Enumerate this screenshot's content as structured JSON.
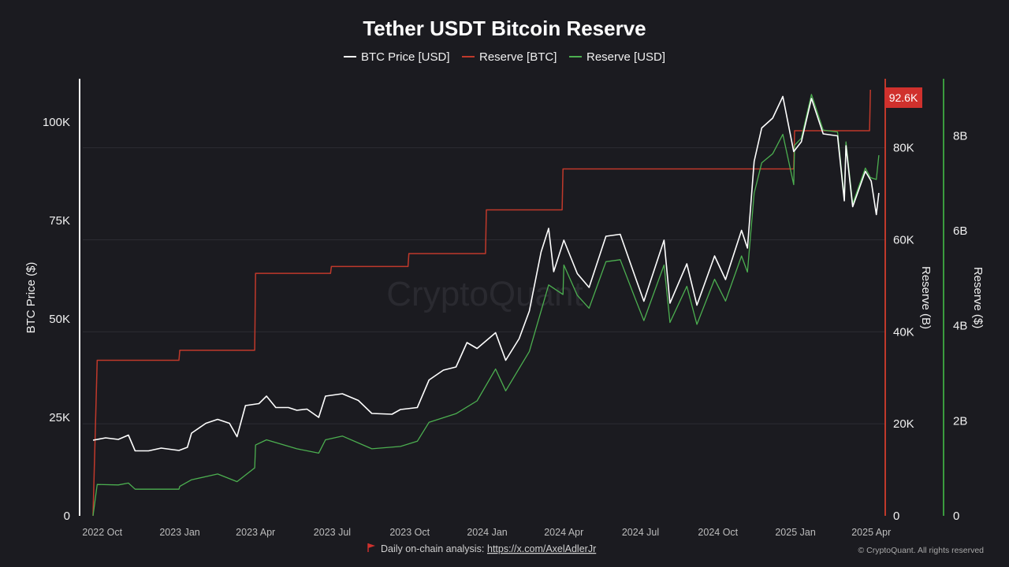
{
  "chart_data": {
    "type": "line",
    "title": "Tether USDT Bitcoin Reserve",
    "legend": {
      "placement": "top-center",
      "entries": [
        {
          "label": "BTC Price [USD]",
          "color": "#ffffff"
        },
        {
          "label": "Reserve [BTC]",
          "color": "#c0392b"
        },
        {
          "label": "Reserve [USD]",
          "color": "#4caf50"
        }
      ]
    },
    "x_axis": {
      "type": "date",
      "range": [
        "2022-09-20",
        "2025-04-12"
      ],
      "ticks": [
        {
          "date": "2022-10-01",
          "label": "2022 Oct"
        },
        {
          "date": "2023-01-01",
          "label": "2023 Jan"
        },
        {
          "date": "2023-04-01",
          "label": "2023 Apr"
        },
        {
          "date": "2023-07-01",
          "label": "2023 Jul"
        },
        {
          "date": "2023-10-01",
          "label": "2023 Oct"
        },
        {
          "date": "2024-01-01",
          "label": "2024 Jan"
        },
        {
          "date": "2024-04-01",
          "label": "2024 Apr"
        },
        {
          "date": "2024-07-01",
          "label": "2024 Jul"
        },
        {
          "date": "2024-10-01",
          "label": "2024 Oct"
        },
        {
          "date": "2025-01-01",
          "label": "2025 Jan"
        },
        {
          "date": "2025-04-01",
          "label": "2025 Apr"
        }
      ]
    },
    "y_axes": {
      "left": {
        "label": "BTC Price ($)",
        "range": [
          0,
          111000
        ],
        "ticks": [
          0,
          25000,
          50000,
          75000,
          100000
        ],
        "tick_labels": [
          "0",
          "25K",
          "50K",
          "75K",
          "100K"
        ]
      },
      "right_btc": {
        "label": "Reserve (B)",
        "range": [
          0,
          95000
        ],
        "ticks": [
          0,
          20000,
          40000,
          60000,
          80000
        ],
        "tick_labels": [
          "0",
          "20K",
          "40K",
          "60K",
          "80K"
        ],
        "color": "#c0392b"
      },
      "right_usd": {
        "label": "Reserve ($)",
        "range": [
          0,
          9200000000
        ],
        "ticks": [
          0,
          2000000000,
          4000000000,
          6000000000,
          8000000000
        ],
        "tick_labels": [
          "0",
          "2B",
          "4B",
          "6B",
          "8B"
        ],
        "color": "#4caf50"
      }
    },
    "grid": true,
    "watermark": "CryptoQuant",
    "last_value_badge": "92.6K",
    "series": [
      {
        "name": "BTC Price [USD]",
        "color": "#ffffff",
        "axis": "left",
        "points": [
          [
            "2022-09-20",
            19200
          ],
          [
            "2022-10-05",
            19800
          ],
          [
            "2022-10-20",
            19400
          ],
          [
            "2022-11-01",
            20500
          ],
          [
            "2022-11-09",
            16500
          ],
          [
            "2022-11-25",
            16500
          ],
          [
            "2022-12-10",
            17200
          ],
          [
            "2022-12-31",
            16600
          ],
          [
            "2023-01-10",
            17400
          ],
          [
            "2023-01-15",
            21000
          ],
          [
            "2023-02-01",
            23500
          ],
          [
            "2023-02-15",
            24500
          ],
          [
            "2023-03-01",
            23500
          ],
          [
            "2023-03-10",
            20100
          ],
          [
            "2023-03-20",
            28000
          ],
          [
            "2023-04-05",
            28500
          ],
          [
            "2023-04-14",
            30400
          ],
          [
            "2023-04-25",
            27500
          ],
          [
            "2023-05-10",
            27500
          ],
          [
            "2023-05-20",
            26800
          ],
          [
            "2023-06-01",
            27100
          ],
          [
            "2023-06-15",
            25000
          ],
          [
            "2023-06-23",
            30400
          ],
          [
            "2023-07-13",
            31000
          ],
          [
            "2023-08-01",
            29300
          ],
          [
            "2023-08-17",
            26000
          ],
          [
            "2023-09-10",
            25800
          ],
          [
            "2023-09-20",
            27000
          ],
          [
            "2023-10-10",
            27500
          ],
          [
            "2023-10-24",
            34500
          ],
          [
            "2023-11-10",
            37000
          ],
          [
            "2023-11-25",
            37800
          ],
          [
            "2023-12-08",
            44000
          ],
          [
            "2023-12-20",
            42500
          ],
          [
            "2024-01-11",
            46500
          ],
          [
            "2024-01-23",
            39500
          ],
          [
            "2024-02-08",
            45000
          ],
          [
            "2024-02-20",
            52000
          ],
          [
            "2024-03-05",
            67000
          ],
          [
            "2024-03-14",
            73000
          ],
          [
            "2024-03-20",
            62000
          ],
          [
            "2024-04-01",
            70000
          ],
          [
            "2024-04-17",
            61500
          ],
          [
            "2024-05-01",
            58000
          ],
          [
            "2024-05-21",
            71000
          ],
          [
            "2024-06-07",
            71500
          ],
          [
            "2024-06-25",
            60500
          ],
          [
            "2024-07-05",
            54500
          ],
          [
            "2024-07-29",
            70000
          ],
          [
            "2024-08-05",
            54000
          ],
          [
            "2024-08-25",
            64000
          ],
          [
            "2024-09-06",
            53500
          ],
          [
            "2024-09-27",
            66000
          ],
          [
            "2024-10-10",
            60000
          ],
          [
            "2024-10-29",
            72500
          ],
          [
            "2024-11-05",
            68000
          ],
          [
            "2024-11-13",
            90000
          ],
          [
            "2024-11-22",
            98500
          ],
          [
            "2024-12-05",
            101000
          ],
          [
            "2024-12-17",
            106500
          ],
          [
            "2024-12-30",
            92500
          ],
          [
            "2025-01-08",
            95000
          ],
          [
            "2025-01-20",
            106000
          ],
          [
            "2025-02-03",
            97000
          ],
          [
            "2025-02-20",
            96500
          ],
          [
            "2025-02-28",
            80000
          ],
          [
            "2025-03-02",
            94000
          ],
          [
            "2025-03-10",
            78500
          ],
          [
            "2025-03-25",
            87500
          ],
          [
            "2025-04-01",
            85000
          ],
          [
            "2025-04-07",
            76500
          ],
          [
            "2025-04-10",
            82000
          ]
        ]
      },
      {
        "name": "Reserve [BTC]",
        "color": "#c0392b",
        "axis": "right_btc",
        "points": [
          [
            "2022-09-20",
            0
          ],
          [
            "2022-09-25",
            33800
          ],
          [
            "2022-12-31",
            33800
          ],
          [
            "2023-01-01",
            36000
          ],
          [
            "2023-03-31",
            36000
          ],
          [
            "2023-04-01",
            52700
          ],
          [
            "2023-06-29",
            52700
          ],
          [
            "2023-06-30",
            54200
          ],
          [
            "2023-09-29",
            54200
          ],
          [
            "2023-09-30",
            57000
          ],
          [
            "2023-12-30",
            57000
          ],
          [
            "2023-12-31",
            66500
          ],
          [
            "2024-03-30",
            66500
          ],
          [
            "2024-03-31",
            75400
          ],
          [
            "2024-12-30",
            75400
          ],
          [
            "2024-12-31",
            83700
          ],
          [
            "2025-03-30",
            83700
          ],
          [
            "2025-03-31",
            92600
          ]
        ]
      },
      {
        "name": "Reserve [USD]",
        "color": "#4caf50",
        "axis": "right_usd",
        "points": [
          [
            "2022-09-20",
            0
          ],
          [
            "2022-09-25",
            660000000
          ],
          [
            "2022-10-20",
            650000000
          ],
          [
            "2022-11-01",
            690000000
          ],
          [
            "2022-11-09",
            560000000
          ],
          [
            "2022-12-31",
            560000000
          ],
          [
            "2023-01-01",
            620000000
          ],
          [
            "2023-01-15",
            760000000
          ],
          [
            "2023-02-15",
            880000000
          ],
          [
            "2023-03-10",
            720000000
          ],
          [
            "2023-03-31",
            1010000000
          ],
          [
            "2023-04-01",
            1490000000
          ],
          [
            "2023-04-14",
            1600000000
          ],
          [
            "2023-05-20",
            1410000000
          ],
          [
            "2023-06-15",
            1320000000
          ],
          [
            "2023-06-23",
            1600000000
          ],
          [
            "2023-07-13",
            1680000000
          ],
          [
            "2023-08-17",
            1410000000
          ],
          [
            "2023-09-20",
            1460000000
          ],
          [
            "2023-10-10",
            1570000000
          ],
          [
            "2023-10-24",
            1970000000
          ],
          [
            "2023-11-25",
            2150000000
          ],
          [
            "2023-12-20",
            2420000000
          ],
          [
            "2024-01-11",
            3090000000
          ],
          [
            "2024-01-23",
            2630000000
          ],
          [
            "2024-02-20",
            3460000000
          ],
          [
            "2024-03-14",
            4860000000
          ],
          [
            "2024-03-31",
            4660000000
          ],
          [
            "2024-04-01",
            5280000000
          ],
          [
            "2024-04-17",
            4640000000
          ],
          [
            "2024-05-01",
            4370000000
          ],
          [
            "2024-05-21",
            5350000000
          ],
          [
            "2024-06-07",
            5390000000
          ],
          [
            "2024-06-25",
            4560000000
          ],
          [
            "2024-07-05",
            4110000000
          ],
          [
            "2024-07-29",
            5280000000
          ],
          [
            "2024-08-05",
            4070000000
          ],
          [
            "2024-08-25",
            4830000000
          ],
          [
            "2024-09-06",
            4030000000
          ],
          [
            "2024-09-27",
            4980000000
          ],
          [
            "2024-10-10",
            4520000000
          ],
          [
            "2024-10-29",
            5470000000
          ],
          [
            "2024-11-05",
            5130000000
          ],
          [
            "2024-11-13",
            6790000000
          ],
          [
            "2024-11-22",
            7430000000
          ],
          [
            "2024-12-05",
            7620000000
          ],
          [
            "2024-12-17",
            8030000000
          ],
          [
            "2024-12-30",
            6970000000
          ],
          [
            "2024-12-31",
            7800000000
          ],
          [
            "2025-01-08",
            7950000000
          ],
          [
            "2025-01-20",
            8870000000
          ],
          [
            "2025-02-03",
            8120000000
          ],
          [
            "2025-02-20",
            8080000000
          ],
          [
            "2025-02-28",
            6700000000
          ],
          [
            "2025-03-02",
            7870000000
          ],
          [
            "2025-03-10",
            6570000000
          ],
          [
            "2025-03-25",
            7320000000
          ],
          [
            "2025-03-31",
            7120000000
          ],
          [
            "2025-04-07",
            7080000000
          ],
          [
            "2025-04-10",
            7590000000
          ]
        ]
      }
    ]
  },
  "footer": {
    "analysis_text": "Daily on-chain analysis:",
    "analysis_link": "https://x.com/AxelAdlerJr",
    "copyright": "© CryptoQuant. All rights reserved"
  }
}
